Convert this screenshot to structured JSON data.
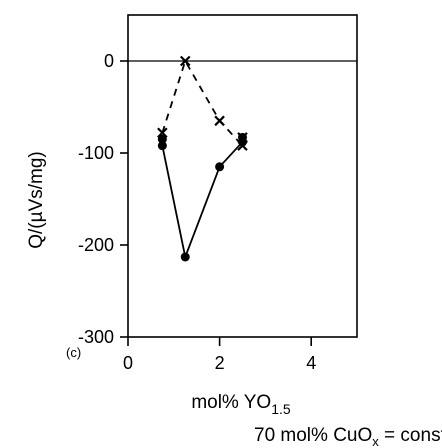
{
  "chart_data": {
    "type": "line",
    "panel_label": "(c)",
    "ylabel": "Q/(µVs/mg)",
    "xlabel_main": "mol% YO",
    "xlabel_sub": "1.5",
    "note_main": "70 mol% CuO",
    "note_sub": "x",
    "note_tail": " = const.",
    "xlim": [
      0,
      5
    ],
    "ylim": [
      -300,
      50
    ],
    "xticks": [
      0,
      2,
      4
    ],
    "yticks": [
      0,
      -100,
      -200,
      -300
    ],
    "zero_line": 0,
    "series": [
      {
        "marker": "x",
        "line_style": "dashed",
        "x": [
          0.75,
          1.25,
          2.0,
          2.5,
          2.5
        ],
        "y": [
          -78,
          0,
          -65,
          -92,
          -83
        ]
      },
      {
        "marker": "circle",
        "line_style": "solid",
        "x": [
          0.75,
          0.75,
          1.25,
          2.0,
          2.5,
          2.5
        ],
        "y": [
          -85,
          -92,
          -213,
          -115,
          -88,
          -83
        ]
      }
    ]
  }
}
